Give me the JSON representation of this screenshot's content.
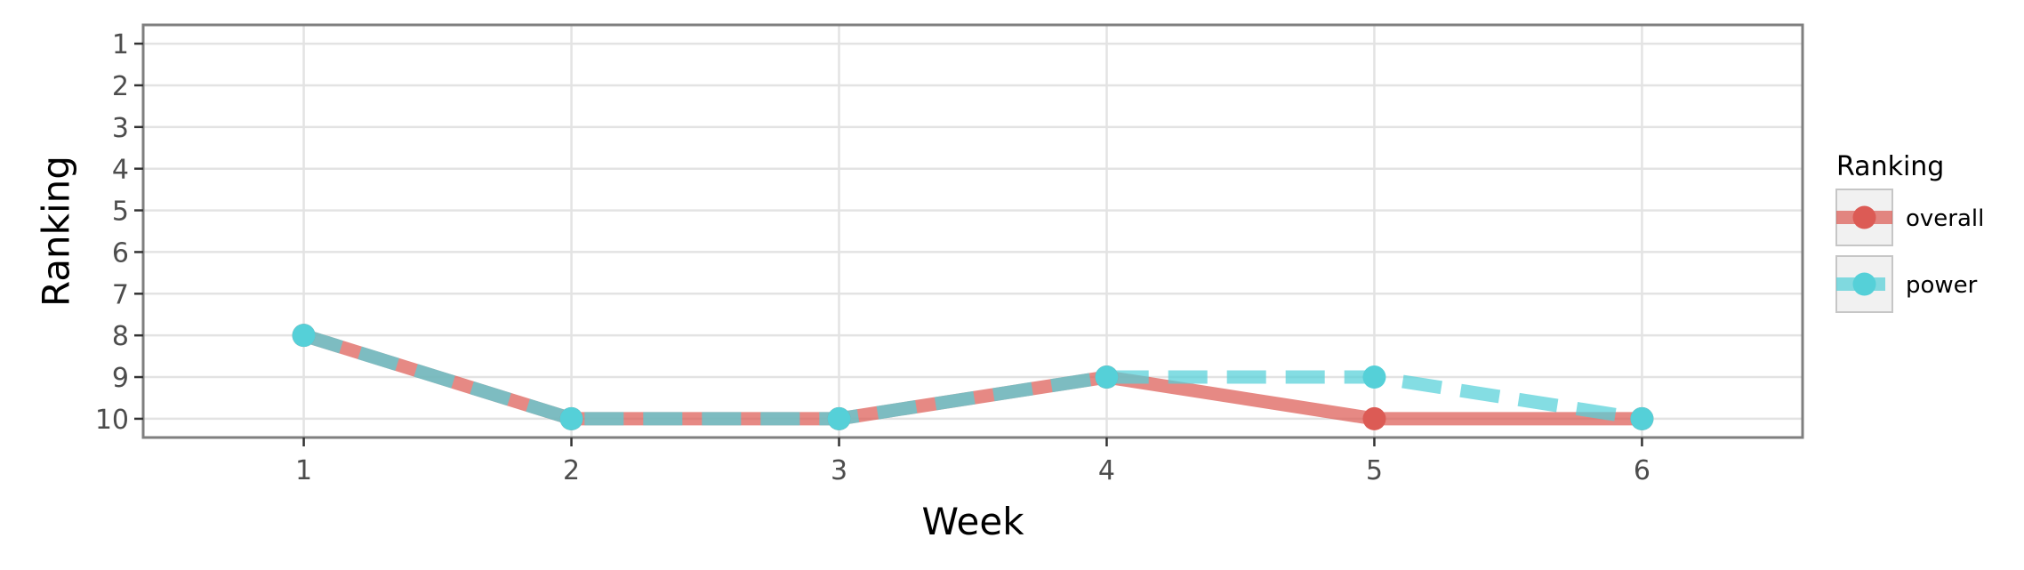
{
  "chart_data": {
    "type": "line",
    "title": "",
    "xlabel": "Week",
    "ylabel": "Ranking",
    "x": [
      1,
      2,
      3,
      4,
      5,
      6
    ],
    "x_ticks": [
      "1",
      "2",
      "3",
      "4",
      "5",
      "6"
    ],
    "xlim": [
      0.4,
      6.6
    ],
    "y_ticks": [
      "1",
      "2",
      "3",
      "4",
      "5",
      "6",
      "7",
      "8",
      "9",
      "10"
    ],
    "ylim": [
      0.55,
      10.45
    ],
    "y_reversed": true,
    "grid": true,
    "legend": {
      "title": "Ranking",
      "placement": "right"
    },
    "series": [
      {
        "name": "overall",
        "values": [
          8,
          10,
          10,
          9,
          10,
          10
        ],
        "color": "#dc5b55",
        "line_style": "solid"
      },
      {
        "name": "power",
        "values": [
          8,
          10,
          10,
          9,
          9,
          10
        ],
        "color": "#55d0d8",
        "line_style": "dashed"
      }
    ],
    "colors": {
      "grid": "#e3e3e3",
      "frame": "#7f7f7f",
      "legend_key_bg": "#f1f1f1",
      "legend_key_border": "#c6c6c6"
    }
  }
}
